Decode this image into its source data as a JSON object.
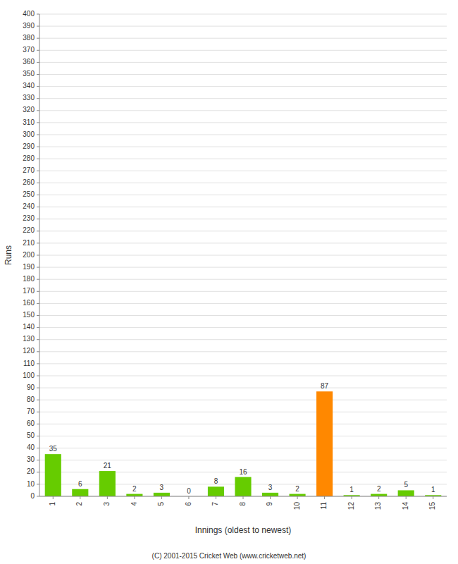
{
  "chart_data": {
    "type": "bar",
    "categories": [
      "1",
      "2",
      "3",
      "4",
      "5",
      "6",
      "7",
      "8",
      "9",
      "10",
      "11",
      "12",
      "13",
      "14",
      "15"
    ],
    "values": [
      35,
      6,
      21,
      2,
      3,
      0,
      8,
      16,
      3,
      2,
      87,
      1,
      2,
      5,
      1
    ],
    "colors": [
      "#66cc00",
      "#66cc00",
      "#66cc00",
      "#66cc00",
      "#66cc00",
      "#66cc00",
      "#66cc00",
      "#66cc00",
      "#66cc00",
      "#66cc00",
      "#ff8800",
      "#66cc00",
      "#66cc00",
      "#66cc00",
      "#66cc00"
    ],
    "x_label": "Innings (oldest to newest)",
    "y_label": "Runs",
    "ylim": [
      0,
      400
    ],
    "yticks": [
      0,
      10,
      20,
      30,
      40,
      50,
      60,
      70,
      80,
      90,
      100,
      110,
      120,
      130,
      140,
      150,
      160,
      170,
      180,
      190,
      200,
      210,
      220,
      230,
      240,
      250,
      260,
      270,
      280,
      290,
      300,
      310,
      320,
      330,
      340,
      350,
      360,
      370,
      380,
      390,
      400
    ],
    "grid": true,
    "data_labels": true,
    "annotations": [
      "(C) 2001-2015 Cricket Web (www.cricketweb.net)"
    ]
  }
}
